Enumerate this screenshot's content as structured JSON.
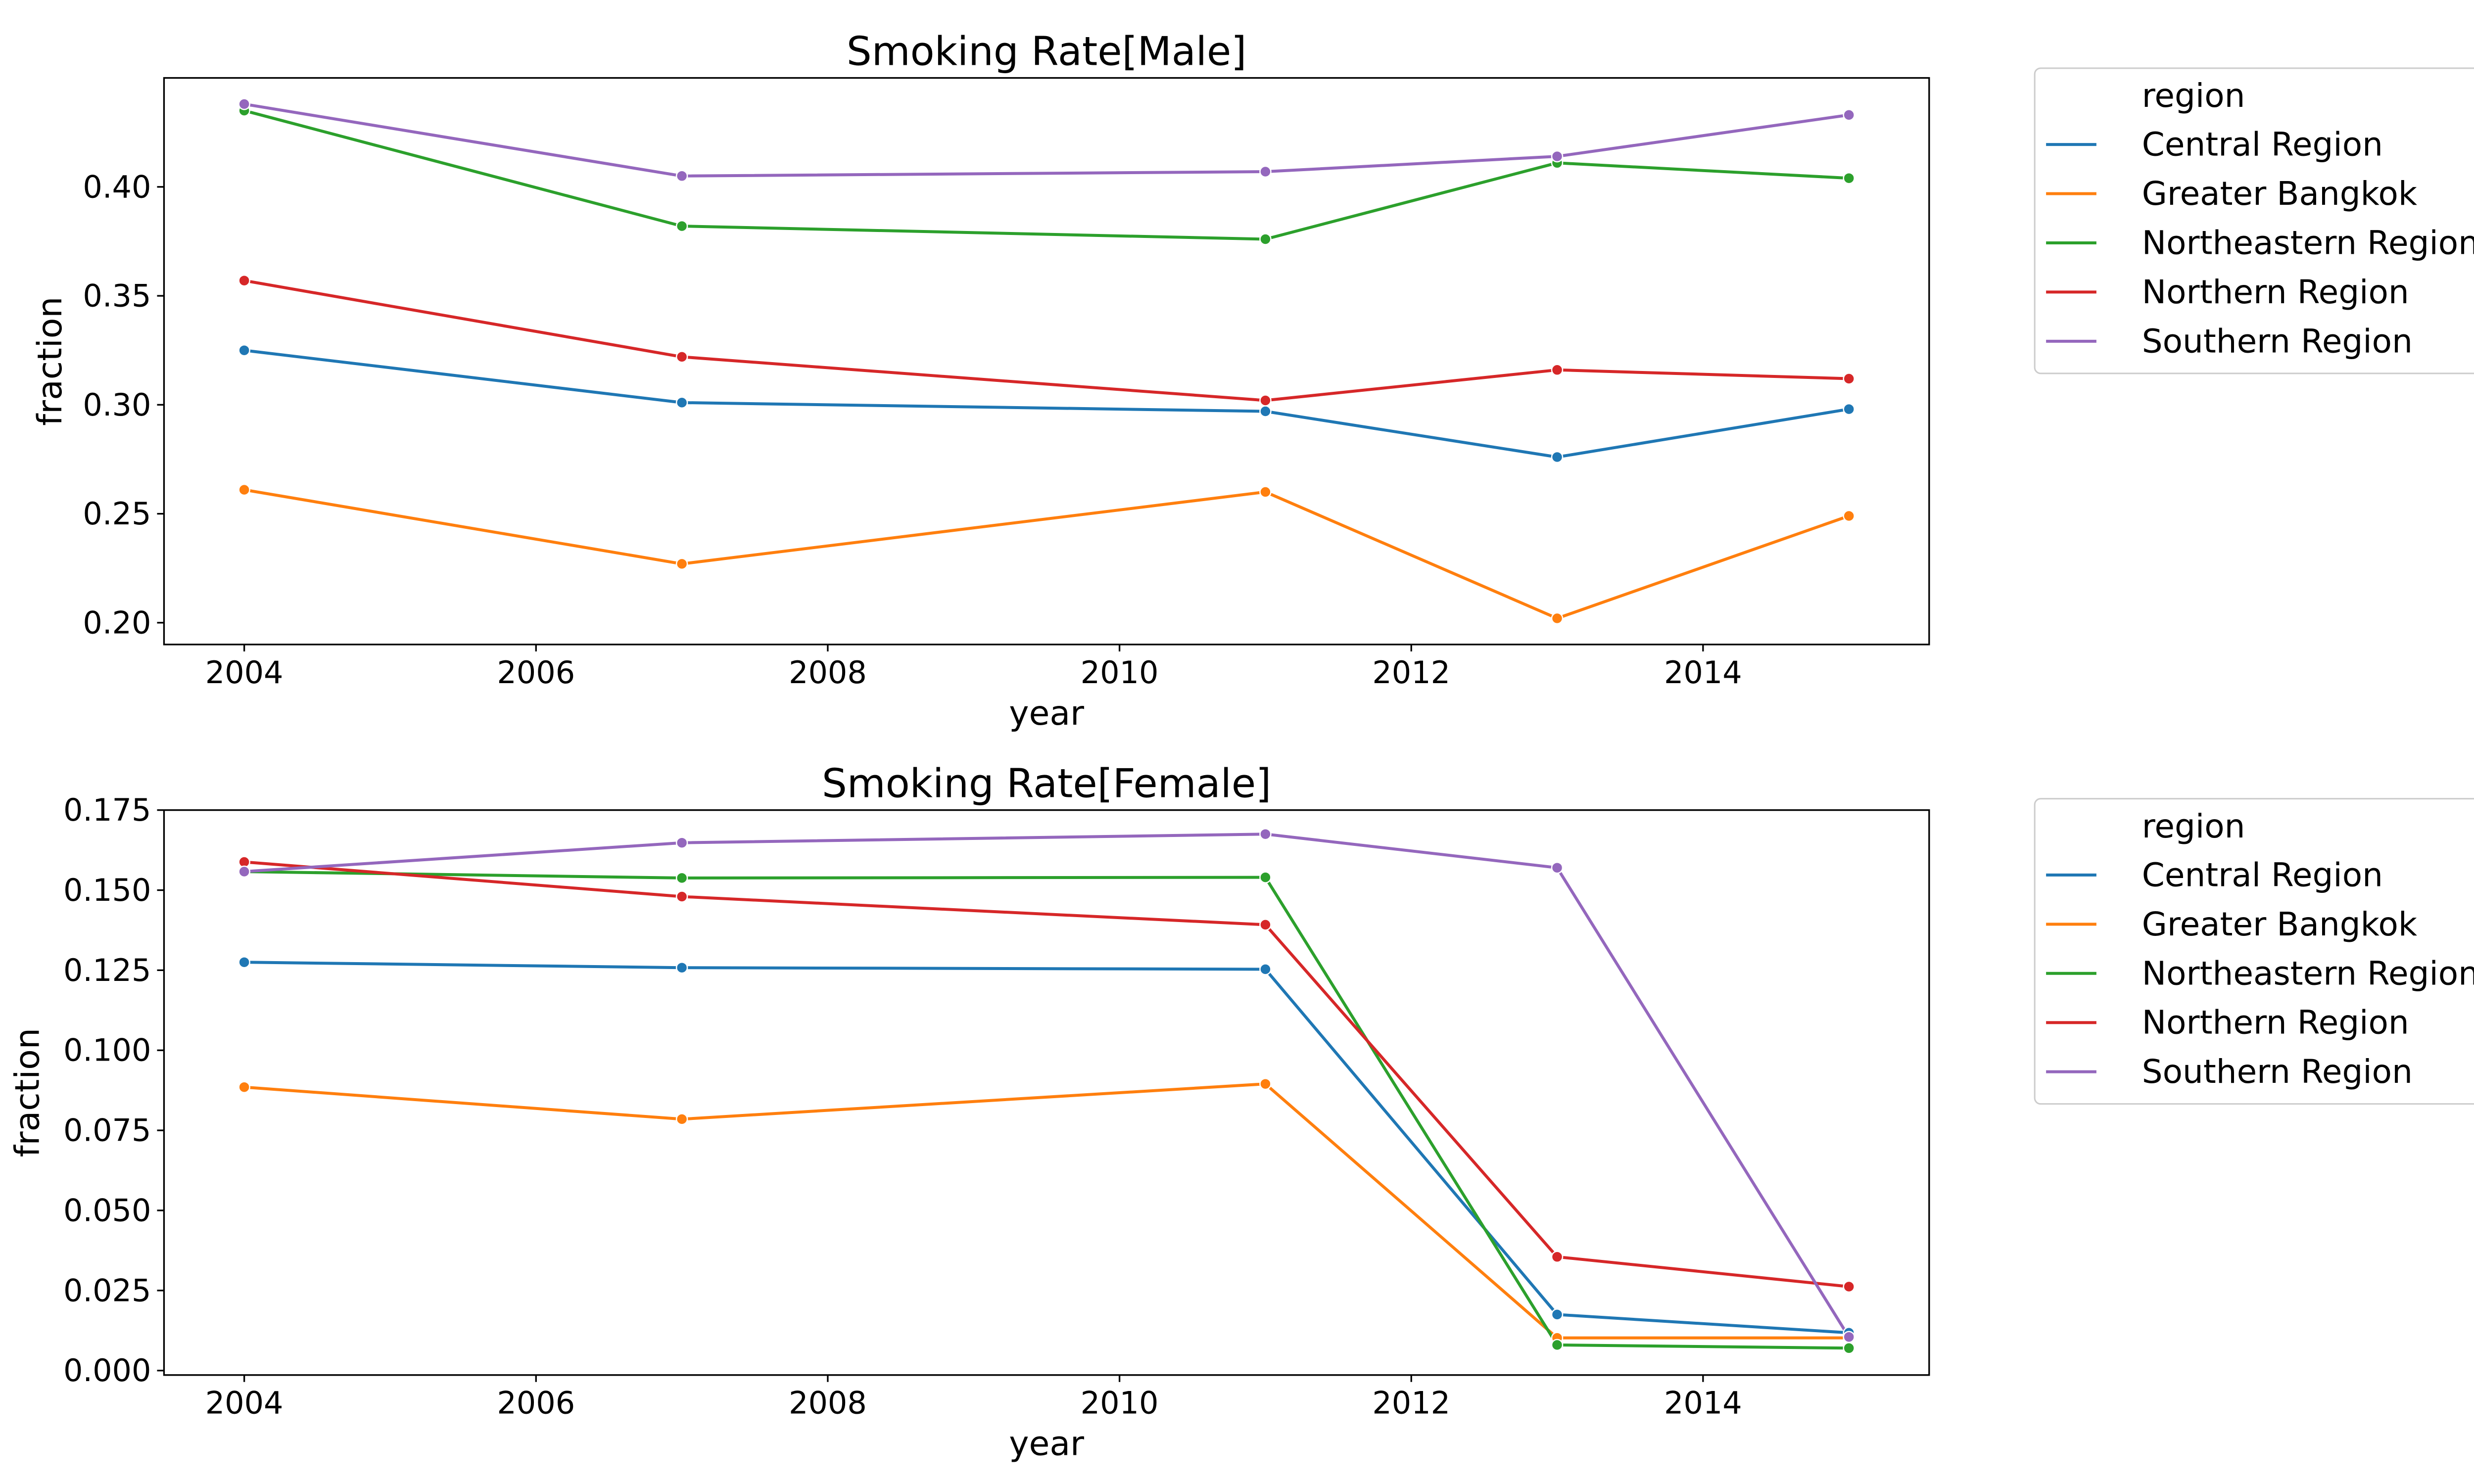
{
  "chart_data": [
    {
      "type": "line",
      "title": "Smoking Rate[Male]",
      "xlabel": "year",
      "ylabel": "fraction",
      "xlim": [
        2003.45,
        2015.55
      ],
      "ylim": [
        0.19,
        0.45
      ],
      "xticks": [
        2004,
        2006,
        2008,
        2010,
        2012,
        2014
      ],
      "yticks": [
        0.2,
        0.25,
        0.3,
        0.35,
        0.4
      ],
      "ytick_labels": [
        "0.20",
        "0.25",
        "0.30",
        "0.35",
        "0.40"
      ],
      "x": [
        2004,
        2007,
        2011,
        2013,
        2015
      ],
      "legend_title": "region",
      "legend_position": "outside-right",
      "grid": false,
      "series": [
        {
          "name": "Central Region",
          "color": "#1f77b4",
          "values": [
            0.325,
            0.301,
            0.297,
            0.276,
            0.298
          ]
        },
        {
          "name": "Greater Bangkok",
          "color": "#ff7f0e",
          "values": [
            0.261,
            0.227,
            0.26,
            0.202,
            0.249
          ]
        },
        {
          "name": "Northeastern Region",
          "color": "#2ca02c",
          "values": [
            0.435,
            0.382,
            0.376,
            0.411,
            0.404
          ]
        },
        {
          "name": "Northern Region",
          "color": "#d62728",
          "values": [
            0.357,
            0.322,
            0.302,
            0.316,
            0.312
          ]
        },
        {
          "name": "Southern Region",
          "color": "#9467bd",
          "values": [
            0.438,
            0.405,
            0.407,
            0.414,
            0.433
          ]
        }
      ]
    },
    {
      "type": "line",
      "title": "Smoking Rate[Female]",
      "xlabel": "year",
      "ylabel": "fraction",
      "xlim": [
        2003.45,
        2015.55
      ],
      "ylim": [
        -0.0014,
        0.175
      ],
      "xticks": [
        2004,
        2006,
        2008,
        2010,
        2012,
        2014
      ],
      "yticks": [
        0.0,
        0.025,
        0.05,
        0.075,
        0.1,
        0.125,
        0.15,
        0.175
      ],
      "ytick_labels": [
        "0.000",
        "0.025",
        "0.050",
        "0.075",
        "0.100",
        "0.125",
        "0.150",
        "0.175"
      ],
      "x": [
        2004,
        2007,
        2011,
        2013,
        2015
      ],
      "legend_title": "region",
      "legend_position": "outside-right",
      "grid": false,
      "series": [
        {
          "name": "Central Region",
          "color": "#1f77b4",
          "values": [
            0.1275,
            0.1258,
            0.1253,
            0.0175,
            0.0118
          ]
        },
        {
          "name": "Greater Bangkok",
          "color": "#ff7f0e",
          "values": [
            0.0885,
            0.0785,
            0.0895,
            0.0102,
            0.0102
          ]
        },
        {
          "name": "Northeastern Region",
          "color": "#2ca02c",
          "values": [
            0.1558,
            0.1538,
            0.154,
            0.008,
            0.007
          ]
        },
        {
          "name": "Northern Region",
          "color": "#d62728",
          "values": [
            0.1588,
            0.148,
            0.1392,
            0.0355,
            0.0262
          ]
        },
        {
          "name": "Southern Region",
          "color": "#9467bd",
          "values": [
            0.1558,
            0.1648,
            0.1675,
            0.157,
            0.0105
          ]
        }
      ]
    }
  ]
}
